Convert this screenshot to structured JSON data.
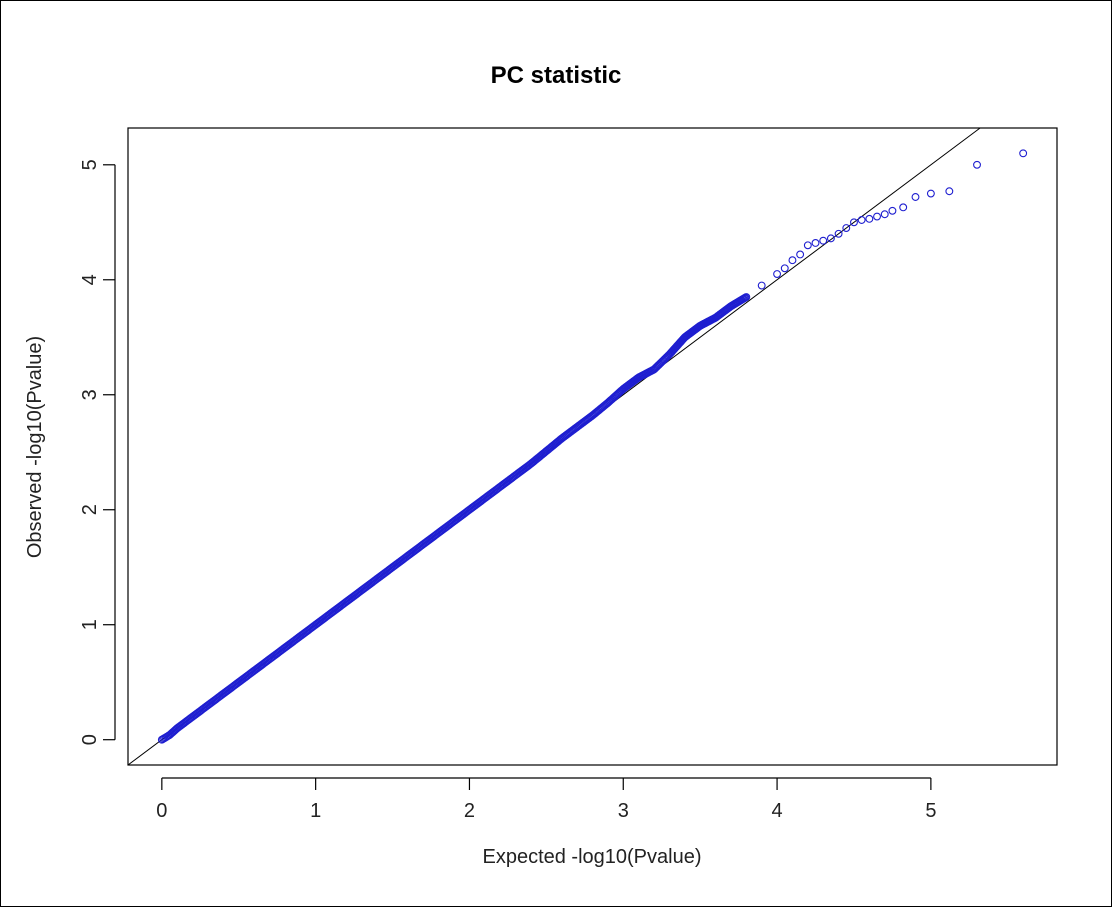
{
  "chart_data": {
    "type": "scatter",
    "title": "PC statistic",
    "xlabel": "Expected -log10(Pvalue)",
    "ylabel": "Observed -log10(Pvalue)",
    "xlim": [
      -0.22,
      5.82
    ],
    "ylim": [
      -0.22,
      5.32
    ],
    "x_ticks": [
      "0",
      "1",
      "2",
      "3",
      "4",
      "5"
    ],
    "y_ticks": [
      "0",
      "1",
      "2",
      "3",
      "4",
      "5"
    ],
    "grid": false,
    "legend": "none",
    "point_color": "#1f1fd0",
    "reference_line": {
      "description": "y = x",
      "color": "#000000"
    },
    "series": [
      {
        "points": [
          [
            0.0,
            0.0
          ],
          [
            0.05,
            0.04
          ],
          [
            0.1,
            0.1
          ],
          [
            0.2,
            0.2
          ],
          [
            0.3,
            0.3
          ],
          [
            0.4,
            0.4
          ],
          [
            0.5,
            0.5
          ],
          [
            0.6,
            0.6
          ],
          [
            0.7,
            0.7
          ],
          [
            0.8,
            0.8
          ],
          [
            0.9,
            0.9
          ],
          [
            1.0,
            1.0
          ],
          [
            1.1,
            1.1
          ],
          [
            1.2,
            1.2
          ],
          [
            1.3,
            1.3
          ],
          [
            1.4,
            1.4
          ],
          [
            1.5,
            1.5
          ],
          [
            1.6,
            1.6
          ],
          [
            1.7,
            1.7
          ],
          [
            1.8,
            1.8
          ],
          [
            1.9,
            1.9
          ],
          [
            2.0,
            2.0
          ],
          [
            2.1,
            2.1
          ],
          [
            2.2,
            2.2
          ],
          [
            2.3,
            2.3
          ],
          [
            2.4,
            2.4
          ],
          [
            2.5,
            2.51
          ],
          [
            2.6,
            2.62
          ],
          [
            2.7,
            2.72
          ],
          [
            2.8,
            2.82
          ],
          [
            2.9,
            2.93
          ],
          [
            3.0,
            3.05
          ],
          [
            3.1,
            3.15
          ],
          [
            3.2,
            3.22
          ],
          [
            3.3,
            3.35
          ],
          [
            3.4,
            3.5
          ],
          [
            3.5,
            3.6
          ],
          [
            3.6,
            3.67
          ],
          [
            3.7,
            3.77
          ],
          [
            3.8,
            3.85
          ],
          [
            3.9,
            3.95
          ],
          [
            4.0,
            4.05
          ],
          [
            4.05,
            4.1
          ],
          [
            4.1,
            4.17
          ],
          [
            4.15,
            4.22
          ],
          [
            4.2,
            4.3
          ],
          [
            4.25,
            4.32
          ],
          [
            4.3,
            4.34
          ],
          [
            4.35,
            4.36
          ],
          [
            4.4,
            4.4
          ],
          [
            4.45,
            4.45
          ],
          [
            4.5,
            4.5
          ],
          [
            4.55,
            4.52
          ],
          [
            4.6,
            4.53
          ],
          [
            4.65,
            4.55
          ],
          [
            4.7,
            4.57
          ],
          [
            4.75,
            4.6
          ],
          [
            4.82,
            4.63
          ],
          [
            4.9,
            4.72
          ],
          [
            5.0,
            4.75
          ],
          [
            5.12,
            4.77
          ],
          [
            5.3,
            5.0
          ],
          [
            5.6,
            5.1
          ]
        ]
      }
    ]
  }
}
